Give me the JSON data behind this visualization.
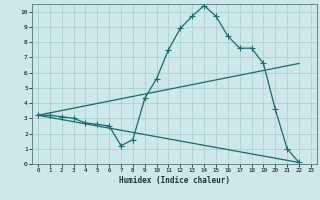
{
  "xlabel": "Humidex (Indice chaleur)",
  "background_color": "#cce8e8",
  "grid_color": "#aacccc",
  "line_color": "#1a6b6b",
  "xlim": [
    -0.5,
    23.5
  ],
  "ylim": [
    0,
    10.5
  ],
  "xticks": [
    0,
    1,
    2,
    3,
    4,
    5,
    6,
    7,
    8,
    9,
    10,
    11,
    12,
    13,
    14,
    15,
    16,
    17,
    18,
    19,
    20,
    21,
    22,
    23
  ],
  "yticks": [
    0,
    1,
    2,
    3,
    4,
    5,
    6,
    7,
    8,
    9,
    10
  ],
  "line1_x": [
    0,
    1,
    2,
    3,
    4,
    5,
    6,
    7,
    8,
    9,
    10,
    11,
    12,
    13,
    14,
    15,
    16,
    17,
    18,
    19,
    20,
    21,
    22
  ],
  "line1_y": [
    3.2,
    3.2,
    3.1,
    3.0,
    2.7,
    2.6,
    2.5,
    1.2,
    1.6,
    4.3,
    5.6,
    7.5,
    8.9,
    9.7,
    10.4,
    9.7,
    8.4,
    7.6,
    7.6,
    6.6,
    3.6,
    1.0,
    0.1
  ],
  "line2_x": [
    0,
    22
  ],
  "line2_y": [
    3.2,
    6.6
  ],
  "line3_x": [
    0,
    22
  ],
  "line3_y": [
    3.2,
    0.1
  ],
  "linewidth": 0.9,
  "markersize": 4
}
